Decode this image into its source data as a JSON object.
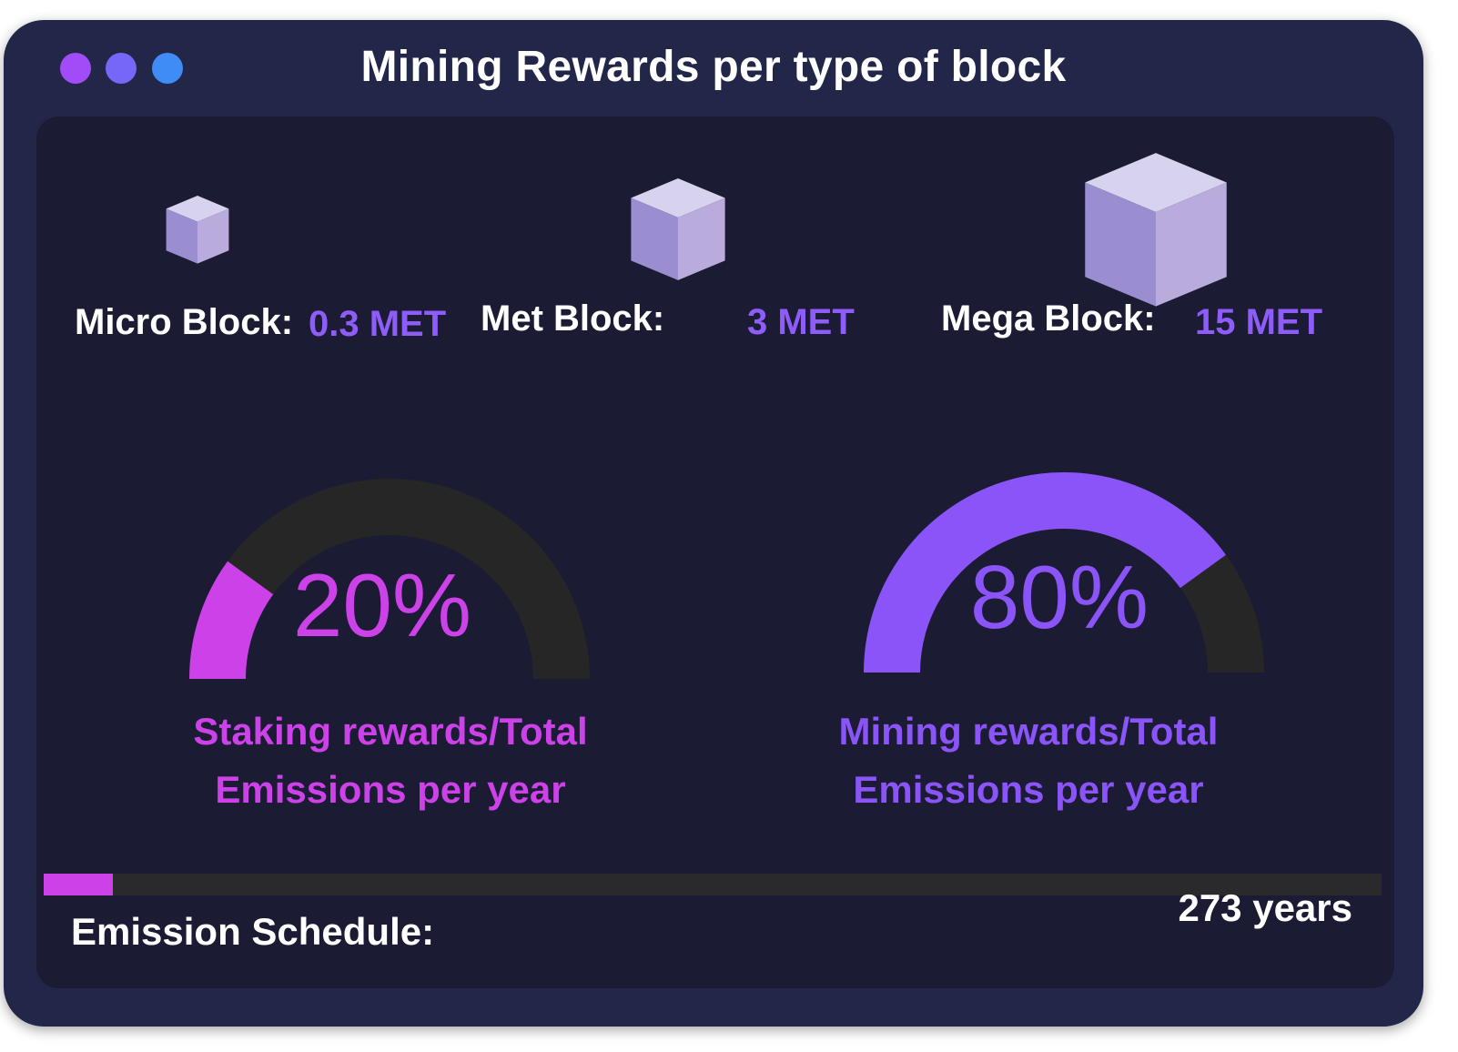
{
  "window": {
    "title": "Mining Rewards per type of block",
    "dots": [
      "window-dot-purple",
      "window-dot-indigo",
      "window-dot-blue"
    ]
  },
  "blocks": [
    {
      "label": "Micro Block:",
      "value": "0.3 MET",
      "icon": "cube-icon"
    },
    {
      "label": "Met Block:",
      "value": "3 MET",
      "icon": "cube-icon"
    },
    {
      "label": "Mega Block:",
      "value": "15 MET",
      "icon": "cube-icon"
    }
  ],
  "gauges": [
    {
      "percent": 20,
      "percent_label": "20%",
      "caption_line1": "Staking rewards/Total",
      "caption_line2": "Emissions per year",
      "color": "#cc42e8"
    },
    {
      "percent": 80,
      "percent_label": "80%",
      "caption_line1": "Mining rewards/Total",
      "caption_line2": "Emissions per year",
      "color": "#8a54f8"
    }
  ],
  "gauge_track_color": "#262626",
  "emission": {
    "label": "Emission Schedule:",
    "value": "273 years",
    "progress_fraction": 0.052,
    "progress_color": "#cc42e8"
  },
  "colors": {
    "window_bg": "#222649",
    "panel_bg": "#1b1b33",
    "accent_value": "#8e5cf8"
  }
}
